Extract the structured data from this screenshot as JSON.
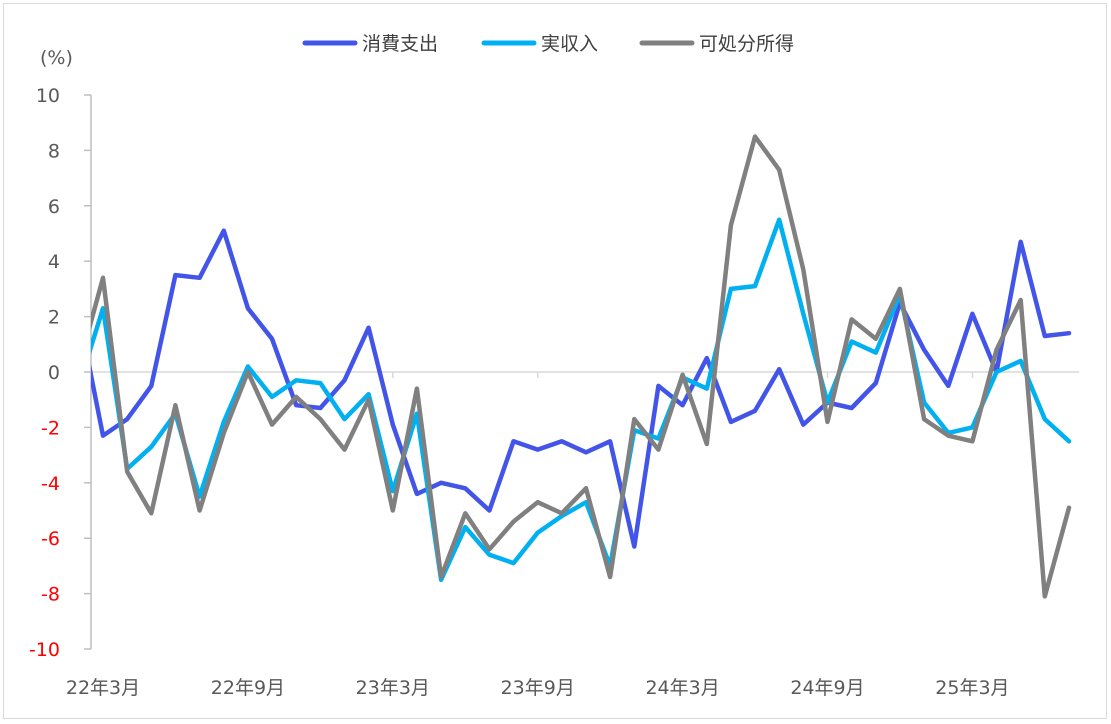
{
  "chart_data": {
    "type": "line",
    "title": "",
    "ylabel": "(%)",
    "xlabel": "",
    "ylim": [
      -10,
      10
    ],
    "yticks": [
      "10",
      "8",
      "6",
      "4",
      "2",
      "0",
      "-2",
      "-4",
      "-6",
      "-8",
      "-10"
    ],
    "ytick_values": [
      10,
      8,
      6,
      4,
      2,
      0,
      -2,
      -4,
      -6,
      -8,
      -10
    ],
    "negative_tick_color": "#ff0000",
    "legend_position": "top",
    "x": [
      "22年2月",
      "22年3月",
      "22年4月",
      "22年5月",
      "22年6月",
      "22年7月",
      "22年8月",
      "22年9月",
      "22年10月",
      "22年11月",
      "22年12月",
      "23年1月",
      "23年2月",
      "23年3月",
      "23年4月",
      "23年5月",
      "23年6月",
      "23年7月",
      "23年8月",
      "23年9月",
      "23年10月",
      "23年11月",
      "23年12月",
      "24年1月",
      "24年2月",
      "24年3月",
      "24年4月",
      "24年5月",
      "24年6月",
      "24年7月",
      "24年8月",
      "24年9月",
      "24年10月",
      "24年11月",
      "24年12月",
      "25年1月",
      "25年2月",
      "25年3月",
      "25年4月",
      "25年5月",
      "25年6月",
      "25年7月"
    ],
    "xtick_labels": [
      "22年3月",
      "22年9月",
      "23年3月",
      "23年9月",
      "24年3月",
      "24年9月",
      "25年3月"
    ],
    "xtick_indices": [
      1,
      7,
      13,
      19,
      25,
      31,
      37
    ],
    "series": [
      {
        "name": "消費支出",
        "color": "#4355e8",
        "values": [
          2.1,
          -2.3,
          -1.7,
          -0.5,
          3.5,
          3.4,
          5.1,
          2.3,
          1.2,
          -1.2,
          -1.3,
          -0.3,
          1.6,
          -1.9,
          -4.4,
          -4.0,
          -4.2,
          -5.0,
          -2.5,
          -2.8,
          -2.5,
          -2.9,
          -2.5,
          -6.3,
          -0.5,
          -1.2,
          0.5,
          -1.8,
          -1.4,
          0.1,
          -1.9,
          -1.1,
          -1.3,
          -0.4,
          2.5,
          0.8,
          -0.5,
          2.1,
          0.0,
          4.7,
          1.3,
          1.4
        ]
      },
      {
        "name": "実収入",
        "color": "#00b0f0",
        "values": [
          -0.5,
          2.3,
          -3.5,
          -2.7,
          -1.5,
          -4.5,
          -1.8,
          0.2,
          -0.9,
          -0.3,
          -0.4,
          -1.7,
          -0.8,
          -4.3,
          -1.5,
          -7.5,
          -5.6,
          -6.6,
          -6.9,
          -5.8,
          -5.2,
          -4.7,
          -7.0,
          -2.1,
          -2.4,
          -0.2,
          -0.6,
          3.0,
          3.1,
          5.5,
          2.1,
          -1.1,
          1.1,
          0.7,
          2.8,
          -1.1,
          -2.2,
          -2.0,
          0.0,
          0.4,
          -1.7,
          -2.5
        ]
      },
      {
        "name": "可処分所得",
        "color": "#808080",
        "values": [
          0.2,
          3.4,
          -3.6,
          -5.1,
          -1.2,
          -5.0,
          -2.2,
          0.0,
          -1.9,
          -0.9,
          -1.7,
          -2.8,
          -1.0,
          -5.0,
          -0.6,
          -7.4,
          -5.1,
          -6.4,
          -5.4,
          -4.7,
          -5.1,
          -4.2,
          -7.4,
          -1.7,
          -2.8,
          -0.1,
          -2.6,
          5.3,
          8.5,
          7.3,
          3.7,
          -1.8,
          1.9,
          1.2,
          3.0,
          -1.7,
          -2.3,
          -2.5,
          0.8,
          2.6,
          -8.1,
          -4.9
        ]
      }
    ]
  }
}
